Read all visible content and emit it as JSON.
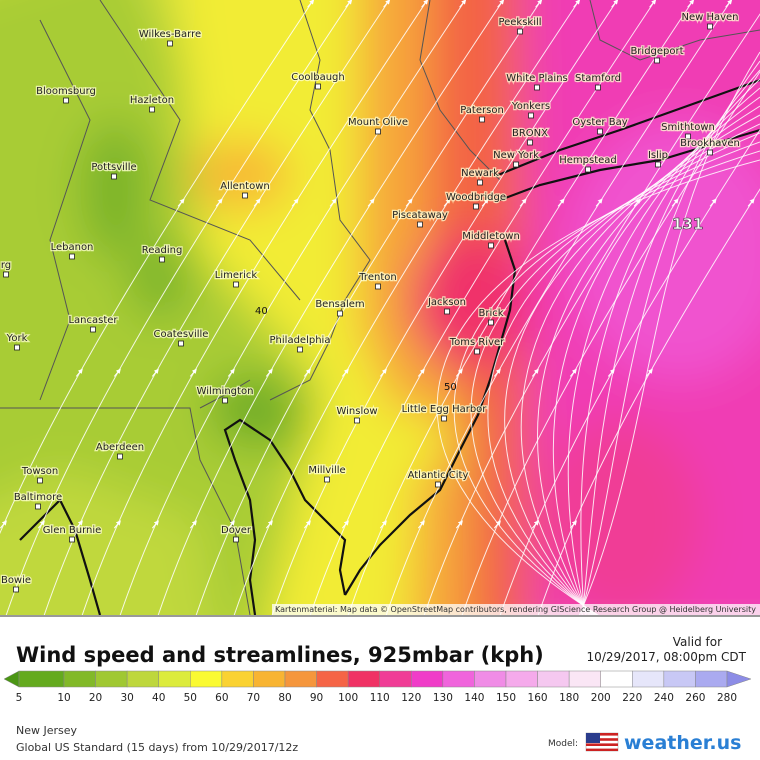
{
  "map": {
    "cities": [
      "Wilkes-Barre",
      "Coolbaugh",
      "Bloomsburg",
      "Hazleton",
      "Pottsville",
      "Mount Olive",
      "Allentown",
      "Lebanon",
      "Reading",
      "Limerick",
      "Lancaster",
      "Coatesville",
      "Philadelphia",
      "Bensalem",
      "Trenton",
      "Wilmington",
      "Winslow",
      "Millville",
      "Aberdeen",
      "Towson",
      "Baltimore",
      "Glen Burnie",
      "Dover",
      "Bowie",
      "York",
      "rg",
      "Peekskill",
      "New Haven",
      "Bridgeport",
      "White Plains",
      "Stamford",
      "Paterson",
      "Yonkers",
      "BRONX",
      "Oyster Bay",
      "Smithtown",
      "Brookhaven",
      "New York",
      "Hempstead",
      "Islip",
      "Newark",
      "Woodbridge",
      "Piscataway",
      "Middletown",
      "Jackson",
      "Brick",
      "Toms River",
      "Little Egg Harbor",
      "Atlantic City"
    ],
    "contour_labels": [
      "40",
      "50",
      "131"
    ],
    "attribution": "Kartenmaterial: Map data © OpenStreetMap contributors, rendering GIScience Research Group @ Heidelberg University"
  },
  "header": {
    "title": "Wind speed and streamlines, 925mbar (kph)",
    "valid_label": "Valid for",
    "valid_time": "10/29/2017, 08:00pm CDT"
  },
  "legend": {
    "below_color": "#4b9614",
    "items": [
      {
        "label": "5",
        "color": "#64aa1e"
      },
      {
        "label": "10",
        "color": "#82b928"
      },
      {
        "label": "20",
        "color": "#a0c832"
      },
      {
        "label": "30",
        "color": "#bed73c"
      },
      {
        "label": "40",
        "color": "#dceb3c"
      },
      {
        "label": "50",
        "color": "#fafa32"
      },
      {
        "label": "60",
        "color": "#fad232"
      },
      {
        "label": "70",
        "color": "#f8b432"
      },
      {
        "label": "80",
        "color": "#f5963c"
      },
      {
        "label": "90",
        "color": "#f56446"
      },
      {
        "label": "100",
        "color": "#f03264"
      },
      {
        "label": "110",
        "color": "#f03c96"
      },
      {
        "label": "120",
        "color": "#f03cc8"
      },
      {
        "label": "130",
        "color": "#f064dc"
      },
      {
        "label": "140",
        "color": "#f08ce6"
      },
      {
        "label": "150",
        "color": "#f5aaeb"
      },
      {
        "label": "160",
        "color": "#f5c8f0"
      },
      {
        "label": "180",
        "color": "#fae6f5"
      },
      {
        "label": "200",
        "color": "#ffffff"
      },
      {
        "label": "220",
        "color": "#e6e6fa"
      },
      {
        "label": "240",
        "color": "#c8c8f5"
      },
      {
        "label": "260",
        "color": "#aaaaf0"
      },
      {
        "label": "280",
        "color": "#8c8ce6"
      }
    ]
  },
  "footer": {
    "region": "New Jersey",
    "model_run": "Global US Standard (15 days) from 10/29/2017/12z",
    "model_label": "Model:",
    "brand": "weather.us"
  }
}
